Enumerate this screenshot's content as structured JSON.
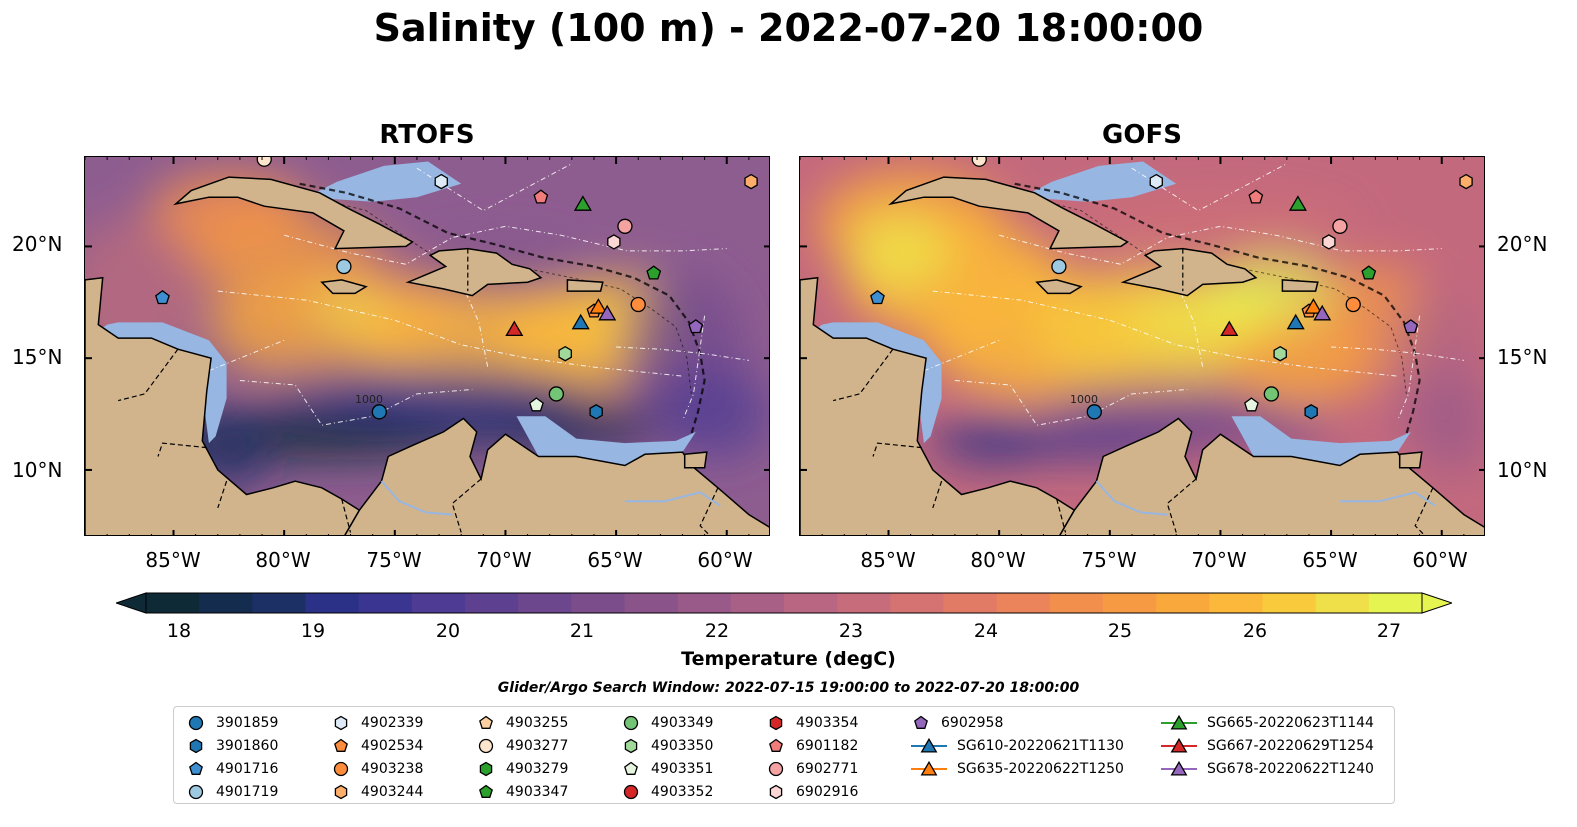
{
  "title": "Salinity (100 m) - 2022-07-20 18:00:00",
  "panels": [
    {
      "title": "RTOFS",
      "theme": "rtofs"
    },
    {
      "title": "GOFS",
      "theme": "gofs"
    }
  ],
  "lon_ticks": [
    "85°W",
    "80°W",
    "75°W",
    "70°W",
    "65°W",
    "60°W"
  ],
  "lat_ticks": [
    "20°N",
    "15°N",
    "10°N"
  ],
  "contour_label": "1000",
  "colorbar": {
    "label": "Temperature (degC)",
    "ticks": [
      "18",
      "19",
      "20",
      "21",
      "22",
      "23",
      "24",
      "25",
      "26",
      "27"
    ],
    "colors": [
      "#0f2a37",
      "#142d4f",
      "#1c3065",
      "#2b3187",
      "#3b3592",
      "#4d3b94",
      "#5d4190",
      "#6c478d",
      "#7b4e8b",
      "#8a538a",
      "#9a5a89",
      "#a96087",
      "#b96683",
      "#c76c7b",
      "#d57372",
      "#e17b66",
      "#eb845a",
      "#f28f4c",
      "#f69b43",
      "#f9a93c",
      "#fbb83a",
      "#f8ca3c",
      "#efe04a",
      "#e6f452"
    ]
  },
  "search_window": "Glider/Argo Search Window: 2022-07-15 19:00:00 to 2022-07-20 18:00:00",
  "legend": [
    {
      "label": "3901859",
      "marker": "circle",
      "color": "#1f77b4"
    },
    {
      "label": "3901860",
      "marker": "hexagon",
      "color": "#1f77b4"
    },
    {
      "label": "4901716",
      "marker": "pentagon",
      "color": "#3d8fd1"
    },
    {
      "label": "4901719",
      "marker": "circle",
      "color": "#9ecae1"
    },
    {
      "label": "4902339",
      "marker": "hexagon",
      "color": "#deebf7"
    },
    {
      "label": "4902534",
      "marker": "pentagon",
      "color": "#fd8d3c"
    },
    {
      "label": "4903238",
      "marker": "circle",
      "color": "#fd8d3c"
    },
    {
      "label": "4903244",
      "marker": "hexagon",
      "color": "#fdae6b"
    },
    {
      "label": "4903255",
      "marker": "pentagon",
      "color": "#fdd0a2"
    },
    {
      "label": "4903277",
      "marker": "circle",
      "color": "#fee6ce"
    },
    {
      "label": "4903279",
      "marker": "hexagon",
      "color": "#2ca02c"
    },
    {
      "label": "4903347",
      "marker": "pentagon",
      "color": "#2ca02c"
    },
    {
      "label": "4903349",
      "marker": "circle",
      "color": "#74c476"
    },
    {
      "label": "4903350",
      "marker": "hexagon",
      "color": "#a1d99b"
    },
    {
      "label": "4903351",
      "marker": "pentagon",
      "color": "#e5f5e0"
    },
    {
      "label": "4903352",
      "marker": "circle",
      "color": "#d62728"
    },
    {
      "label": "4903354",
      "marker": "hexagon",
      "color": "#d62728"
    },
    {
      "label": "6901182",
      "marker": "pentagon",
      "color": "#f07c7c"
    },
    {
      "label": "6902771",
      "marker": "circle",
      "color": "#f4a2a2"
    },
    {
      "label": "6902916",
      "marker": "hexagon",
      "color": "#fcd5d5"
    },
    {
      "label": "6902958",
      "marker": "pentagon",
      "color": "#9467bd"
    },
    {
      "label": "SG610-20220621T1130",
      "marker": "triangle-line",
      "color": "#1f77b4"
    },
    {
      "label": "SG635-20220622T1250",
      "marker": "triangle-line",
      "color": "#ff7f0e"
    },
    {
      "label": "SG665-20220623T1144",
      "marker": "triangle-line",
      "color": "#2ca02c"
    },
    {
      "label": "SG667-20220629T1254",
      "marker": "triangle-line",
      "color": "#d62728"
    },
    {
      "label": "SG678-20220622T1240",
      "marker": "triangle-line",
      "color": "#9467bd"
    }
  ],
  "map_extent": {
    "lon": [
      -89,
      -58
    ],
    "lat": [
      7,
      24
    ]
  },
  "observations": [
    {
      "id": "3901859",
      "lon": -75.7,
      "lat": 12.6
    },
    {
      "id": "3901860",
      "lon": -65.9,
      "lat": 12.6
    },
    {
      "id": "4901716",
      "lon": -85.5,
      "lat": 17.7
    },
    {
      "id": "4901719",
      "lon": -77.3,
      "lat": 19.1
    },
    {
      "id": "4902339",
      "lon": -72.9,
      "lat": 22.9
    },
    {
      "id": "4902534",
      "lon": -66.0,
      "lat": 17.1
    },
    {
      "id": "4903238",
      "lon": -64.0,
      "lat": 17.4
    },
    {
      "id": "4903244",
      "lon": -58.9,
      "lat": 22.9
    },
    {
      "id": "4903277",
      "lon": -80.9,
      "lat": 23.9
    },
    {
      "id": "4903347",
      "lon": -63.3,
      "lat": 18.8
    },
    {
      "id": "4903349",
      "lon": -67.7,
      "lat": 13.4
    },
    {
      "id": "4903350",
      "lon": -67.3,
      "lat": 15.2
    },
    {
      "id": "4903351",
      "lon": -68.6,
      "lat": 12.9
    },
    {
      "id": "6901182",
      "lon": -68.4,
      "lat": 22.2
    },
    {
      "id": "6902771",
      "lon": -64.6,
      "lat": 20.9
    },
    {
      "id": "6902916",
      "lon": -65.1,
      "lat": 20.2
    },
    {
      "id": "6902958",
      "lon": -61.4,
      "lat": 16.4
    },
    {
      "id": "SG610-20220621T1130",
      "lon": -66.6,
      "lat": 16.6
    },
    {
      "id": "SG635-20220622T1250",
      "lon": -65.8,
      "lat": 17.3
    },
    {
      "id": "SG665-20220623T1144",
      "lon": -66.5,
      "lat": 21.9
    },
    {
      "id": "SG667-20220629T1254",
      "lon": -69.6,
      "lat": 16.3
    },
    {
      "id": "SG678-20220622T1240",
      "lon": -65.4,
      "lat": 17.0
    }
  ]
}
